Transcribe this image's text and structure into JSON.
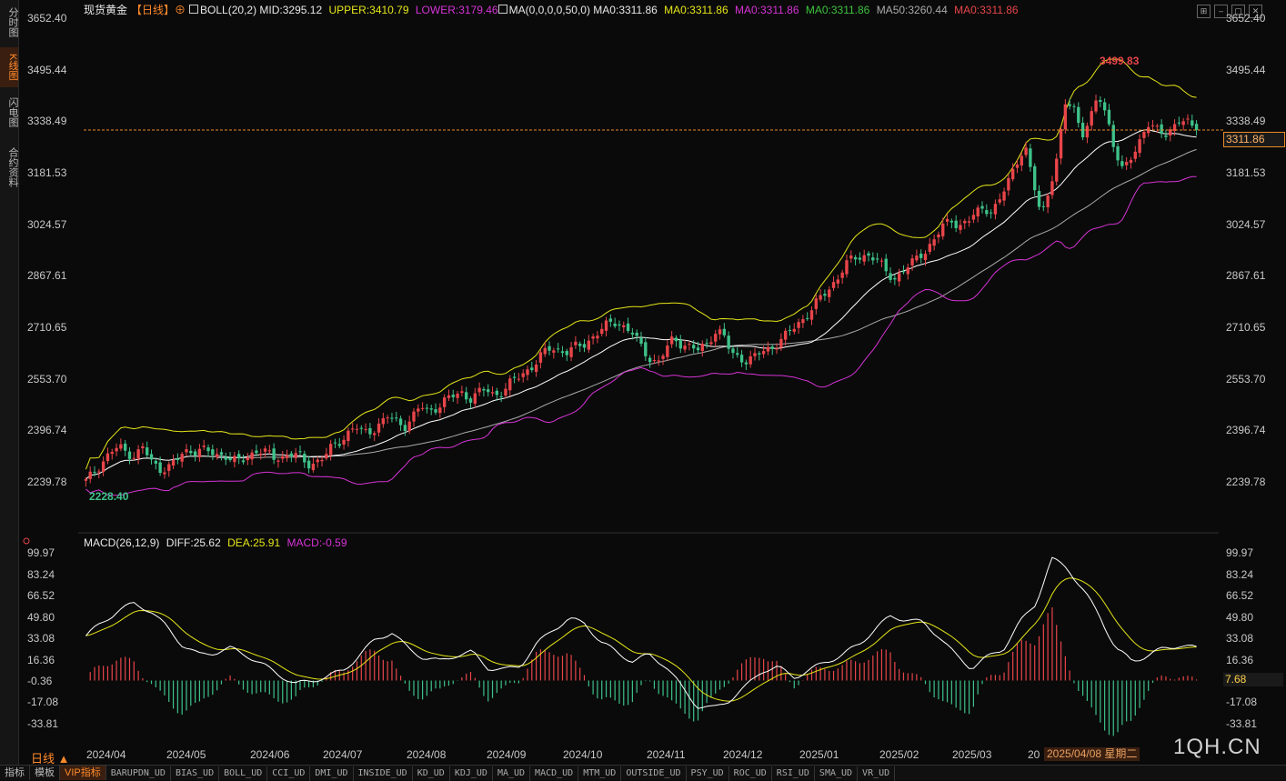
{
  "left_tabs": [
    {
      "label": "分时图",
      "active": false
    },
    {
      "label": "K线图",
      "active": true
    },
    {
      "label": "闪电图",
      "active": false
    },
    {
      "label": "合约资料",
      "active": false
    }
  ],
  "header": {
    "title": "现货黄金",
    "period": "【日线】",
    "boll": "BOLL(20,2) MID:3295.12",
    "upper": "UPPER:3410.79",
    "lower": "LOWER:3179.46",
    "ma_params": "MA(0,0,0,0,50,0) MA0:3311.86",
    "ma0_yellow": "MA0:3311.86",
    "ma0_magenta": "MA0:3311.86",
    "ma0_green": "MA0:3311.86",
    "ma50": "MA50:3260.44",
    "ma0_red": "MA0:3311.86"
  },
  "macd_header": {
    "name": "MACD(26,12,9)",
    "diff": "DIFF:25.62",
    "dea": "DEA:25.91",
    "macd": "MACD:-0.59"
  },
  "price_axis": [
    "3652.40",
    "3495.44",
    "3338.49",
    "3181.53",
    "3024.57",
    "2867.61",
    "2710.65",
    "2553.70",
    "2396.74",
    "2239.78"
  ],
  "macd_axis": [
    "99.97",
    "83.24",
    "66.52",
    "49.80",
    "33.08",
    "16.36",
    "-0.36",
    "-17.08",
    "-33.81"
  ],
  "x_axis": [
    "2024/04",
    "2024/05",
    "2024/06",
    "2024/07",
    "2024/08",
    "2024/09",
    "2024/10",
    "2024/11",
    "2024/12",
    "2025/01",
    "2025/02",
    "2025/03",
    "20"
  ],
  "annotations": {
    "high": "3499.83",
    "low": "2228.40"
  },
  "current_price": "3311.86",
  "current_macd": "7.68",
  "cursor_date": "2025/04/08 星期二",
  "watermark": "1QH.CN",
  "period_selector": "日线 ▲",
  "bottom_tabs": [
    "指标",
    "模板",
    "VIP指标"
  ],
  "bottom_indicators": [
    "BARUPDN_UD",
    "BIAS_UD",
    "BOLL_UD",
    "CCI_UD",
    "DMI_UD",
    "INSIDE_UD",
    "KD_UD",
    "KDJ_UD",
    "MA_UD",
    "MACD_UD",
    "MTM_UD",
    "OUTSIDE_UD",
    "PSY_UD",
    "ROC_UD",
    "RSI_UD",
    "SMA_UD",
    "VR_UD"
  ],
  "colors": {
    "up": "#e8454a",
    "down": "#3ec28a",
    "mid": "#ffffff",
    "upper": "#e6e619",
    "lower": "#d633d6",
    "ma50": "#aaaaaa",
    "dea": "#e6e619",
    "diff": "#ffffff",
    "accent": "#ff8a2a"
  },
  "chart_data": {
    "type": "candlestick",
    "price_range": [
      2160,
      3670
    ],
    "macd_range": [
      -45,
      105
    ],
    "close_series": [
      2240,
      2270,
      2300,
      2330,
      2345,
      2330,
      2320,
      2345,
      2300,
      2280,
      2285,
      2300,
      2330,
      2335,
      2340,
      2330,
      2320,
      2325,
      2305,
      2300,
      2320,
      2340,
      2330,
      2310,
      2315,
      2330,
      2320,
      2290,
      2300,
      2315,
      2340,
      2360,
      2390,
      2410,
      2385,
      2395,
      2420,
      2440,
      2420,
      2410,
      2440,
      2470,
      2450,
      2470,
      2490,
      2500,
      2510,
      2495,
      2510,
      2520,
      2505,
      2515,
      2540,
      2560,
      2580,
      2600,
      2630,
      2650,
      2640,
      2635,
      2650,
      2660,
      2680,
      2700,
      2720,
      2730,
      2710,
      2690,
      2650,
      2620,
      2600,
      2640,
      2680,
      2660,
      2650,
      2640,
      2660,
      2700,
      2690,
      2630,
      2620,
      2610,
      2620,
      2640,
      2650,
      2670,
      2690,
      2720,
      2740,
      2770,
      2800,
      2830,
      2860,
      2900,
      2920,
      2930,
      2930,
      2910,
      2880,
      2860,
      2880,
      2900,
      2930,
      2950,
      2980,
      3020,
      3040,
      3020,
      3030,
      3060,
      3080,
      3060,
      3100,
      3160,
      3220,
      3260,
      3150,
      3050,
      3140,
      3230,
      3400,
      3380,
      3300,
      3340,
      3420,
      3360,
      3250,
      3180,
      3230,
      3280,
      3330,
      3310,
      3300,
      3320,
      3340,
      3330,
      3311.86
    ],
    "diff_series": [
      35,
      45,
      55,
      60,
      55,
      42,
      28,
      20,
      22,
      25,
      20,
      12,
      5,
      -3,
      0,
      3,
      8,
      20,
      32,
      38,
      25,
      18,
      15,
      20,
      22,
      10,
      8,
      12,
      28,
      40,
      48,
      45,
      30,
      22,
      15,
      20,
      12,
      -5,
      -20,
      -22,
      -15,
      -5,
      8,
      10,
      3,
      8,
      15,
      20,
      28,
      40,
      50,
      48,
      45,
      35,
      20,
      10,
      18,
      25,
      45,
      60,
      95,
      88,
      70,
      50,
      25,
      15,
      20,
      25,
      28,
      25
    ]
  }
}
